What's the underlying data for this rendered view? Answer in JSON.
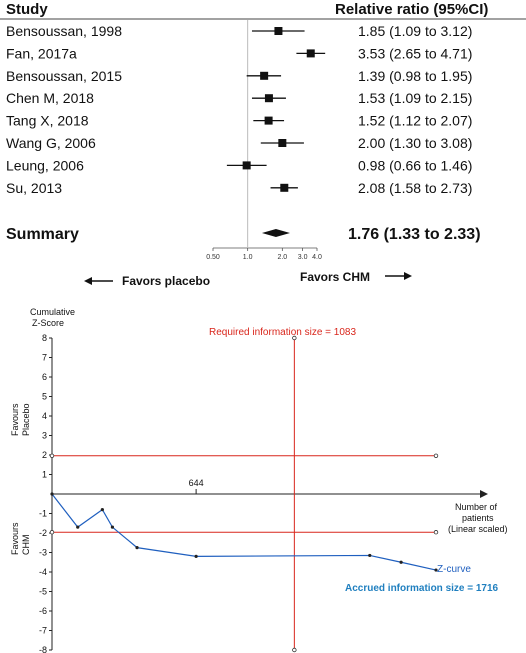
{
  "chart_data": [
    {
      "type": "forest",
      "header": {
        "study": "Study",
        "effect": "Relative ratio (95%CI)"
      },
      "studies": [
        {
          "label": "Bensoussan, 1998",
          "est": 1.85,
          "lo": 1.09,
          "hi": 3.12,
          "text": "1.85 (1.09 to 3.12)"
        },
        {
          "label": "Fan, 2017a",
          "est": 3.53,
          "lo": 2.65,
          "hi": 4.71,
          "text": "3.53 (2.65 to 4.71)"
        },
        {
          "label": "Bensoussan, 2015",
          "est": 1.39,
          "lo": 0.98,
          "hi": 1.95,
          "text": "1.39 (0.98 to 1.95)"
        },
        {
          "label": "Chen M, 2018",
          "est": 1.53,
          "lo": 1.09,
          "hi": 2.15,
          "text": "1.53 (1.09 to 2.15)"
        },
        {
          "label": "Tang X, 2018",
          "est": 1.52,
          "lo": 1.12,
          "hi": 2.07,
          "text": "1.52 (1.12 to 2.07)"
        },
        {
          "label": "Wang G, 2006",
          "est": 2.0,
          "lo": 1.3,
          "hi": 3.08,
          "text": "2.00 (1.30 to 3.08)"
        },
        {
          "label": "Leung, 2006",
          "est": 0.98,
          "lo": 0.66,
          "hi": 1.46,
          "text": "0.98 (0.66 to 1.46)"
        },
        {
          "label": "Su, 2013",
          "est": 2.08,
          "lo": 1.58,
          "hi": 2.73,
          "text": "2.08 (1.58 to 2.73)"
        }
      ],
      "summary": {
        "label": "Summary",
        "est": 1.76,
        "lo": 1.33,
        "hi": 2.33,
        "text": "1.76 (1.33 to 2.33)"
      },
      "xscale": "log",
      "xticks": [
        0.5,
        1.0,
        2.0,
        3.0,
        4.0
      ],
      "xtick_labels": [
        "0.50",
        "1.0",
        "2.0",
        "3.0",
        "4.0"
      ],
      "xlim": [
        0.5,
        4.0
      ],
      "favors_left": "Favors placebo",
      "favors_right": "Favors CHM"
    },
    {
      "type": "line",
      "ylabel_line1": "Cumulative",
      "ylabel_line2": "Z-Score",
      "ylim": [
        -8,
        8
      ],
      "yticks": [
        8,
        7,
        6,
        5,
        4,
        3,
        2,
        1,
        -1,
        -2,
        -3,
        -4,
        -5,
        -6,
        -7,
        -8
      ],
      "xlim": [
        0,
        1716
      ],
      "xtick_value": 644,
      "xtick_label": "644",
      "xlabel_lines": [
        "Number of",
        "patients",
        "(Linear scaled)"
      ],
      "upper_label_lines": [
        "Favours",
        "Placebo"
      ],
      "lower_label_lines": [
        "Favours",
        "CHM"
      ],
      "boundaries": [
        {
          "name": "upper",
          "y": 1.96,
          "color": "#d9261c"
        },
        {
          "name": "lower",
          "y": -1.96,
          "color": "#d9261c"
        }
      ],
      "required_info": {
        "x": 1083,
        "label": "Required information size = 1083",
        "color": "#d9261c"
      },
      "zcurve": {
        "name": "Z-curve",
        "color": "#1f5fbf",
        "x": [
          0,
          115,
          225,
          270,
          380,
          644,
          1420,
          1560,
          1716
        ],
        "y": [
          0,
          -1.7,
          -0.8,
          -1.7,
          -2.75,
          -3.2,
          -3.15,
          -3.5,
          -3.9
        ]
      },
      "accrued_label": "Accrued information size = 1716"
    }
  ]
}
